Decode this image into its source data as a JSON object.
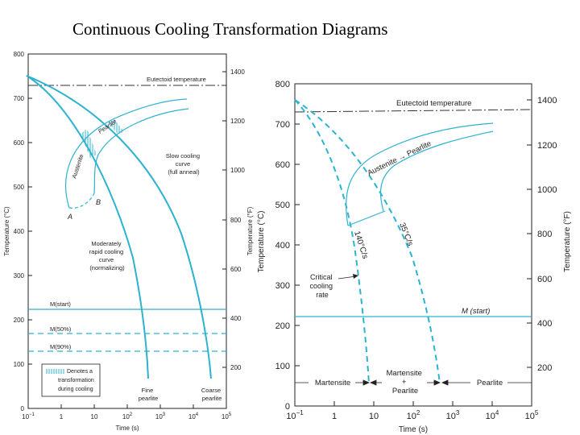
{
  "title": "Continuous Cooling Transformation Diagrams",
  "colors": {
    "curve": "#2bb3cf",
    "axis": "#222222"
  },
  "left": {
    "y_ticks_c": [
      "800",
      "700",
      "600",
      "500",
      "400",
      "300",
      "200",
      "100",
      "0"
    ],
    "y_ticks_f": [
      "1400",
      "1200",
      "1000",
      "800",
      "600",
      "400",
      "200"
    ],
    "x_ticks": [
      {
        "base": "10",
        "exp": "−1"
      },
      {
        "base": "1",
        "exp": ""
      },
      {
        "base": "10",
        "exp": ""
      },
      {
        "base": "10",
        "exp": "2"
      },
      {
        "base": "10",
        "exp": "3"
      },
      {
        "base": "10",
        "exp": "4"
      },
      {
        "base": "10",
        "exp": "5"
      }
    ],
    "y_label_c": "Temperature (°C)",
    "y_label_f": "Temperature (°F)",
    "x_label": "Time (s)",
    "eutectoid": "Eutectoid temperature",
    "austenite": "Austenite",
    "pearlite": "Pearlite",
    "point_a": "A",
    "point_b": "B",
    "slow": [
      "Slow cooling",
      "curve",
      "(full anneal)"
    ],
    "moderate": [
      "Moderately",
      "rapid cooling",
      "curve",
      "(normalizing)"
    ],
    "m_start": "M(start)",
    "m50": "M(50%)",
    "m90": "M(90%)",
    "fine": [
      "Fine",
      "pearlite"
    ],
    "coarse": [
      "Coarse",
      "pearlite"
    ],
    "legend": [
      "Denotes a",
      "transformation",
      "during cooling"
    ]
  },
  "right": {
    "y_ticks_c": [
      "800",
      "700",
      "600",
      "500",
      "400",
      "300",
      "200",
      "100",
      "0"
    ],
    "y_ticks_f": [
      "1400",
      "1200",
      "1000",
      "800",
      "600",
      "400",
      "200"
    ],
    "x_ticks": [
      {
        "base": "10",
        "exp": "−1"
      },
      {
        "base": "1",
        "exp": ""
      },
      {
        "base": "10",
        "exp": ""
      },
      {
        "base": "10",
        "exp": "2"
      },
      {
        "base": "10",
        "exp": "3"
      },
      {
        "base": "10",
        "exp": "4"
      },
      {
        "base": "10",
        "exp": "5"
      }
    ],
    "y_label_c": "Temperature (°C)",
    "y_label_f": "Temperature (°F)",
    "x_label": "Time (s)",
    "eutectoid": "Eutectoid temperature",
    "aus_pearl": "Austenite → Pearlite",
    "rate_140": "140°C/s",
    "rate_35": "35°C/s",
    "critical": [
      "Critical",
      "cooling",
      "rate"
    ],
    "m_start": "M (start)",
    "martensite": "Martensite",
    "mart_pearl": [
      "Martensite",
      "+",
      "Pearlite"
    ],
    "pearlite": "Pearlite"
  }
}
